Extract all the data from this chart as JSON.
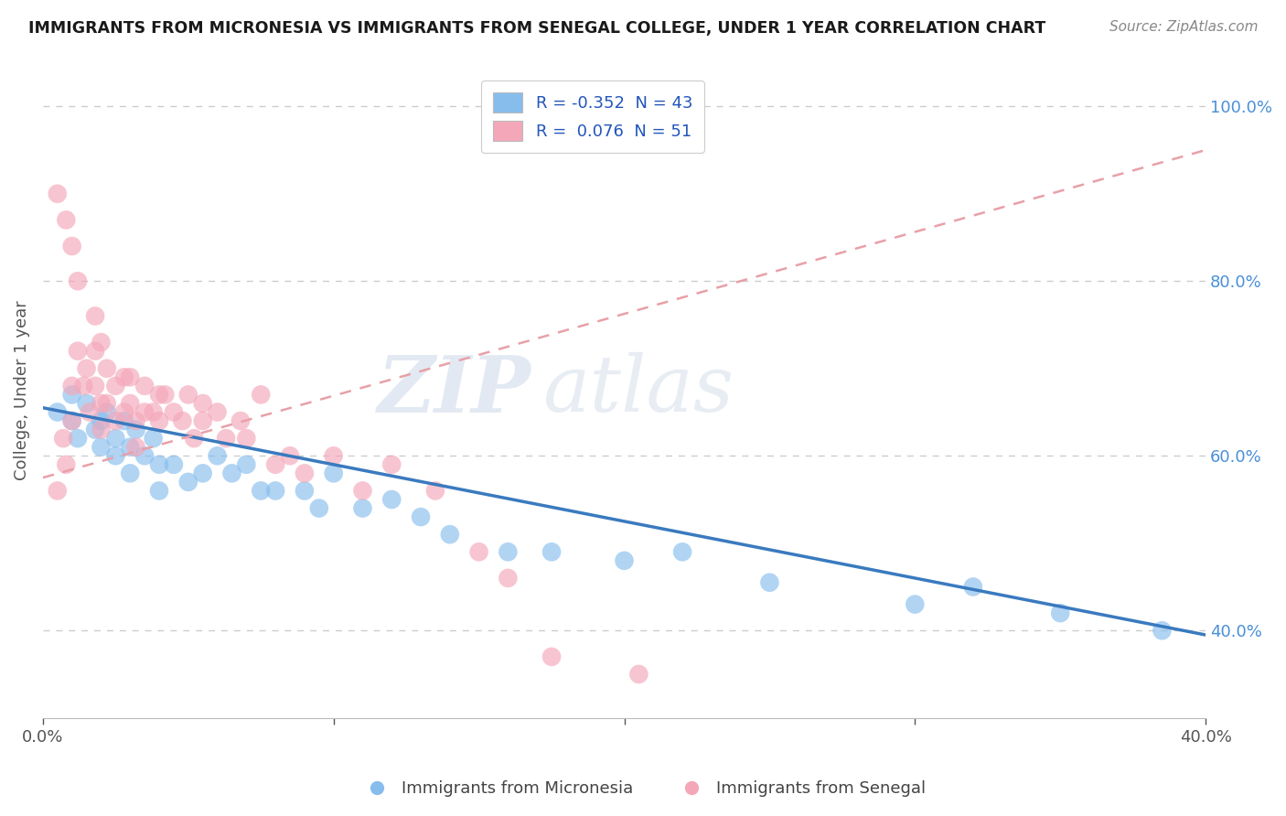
{
  "title": "IMMIGRANTS FROM MICRONESIA VS IMMIGRANTS FROM SENEGAL COLLEGE, UNDER 1 YEAR CORRELATION CHART",
  "source": "Source: ZipAtlas.com",
  "ylabel": "College, Under 1 year",
  "xlim": [
    0.0,
    0.4
  ],
  "ylim": [
    0.3,
    1.05
  ],
  "x_ticks": [
    0.0,
    0.1,
    0.2,
    0.3,
    0.4
  ],
  "x_tick_labels": [
    "0.0%",
    "",
    "",
    "",
    "40.0%"
  ],
  "y_ticks_right": [
    0.4,
    0.6,
    0.8,
    1.0
  ],
  "y_tick_labels_right": [
    "40.0%",
    "60.0%",
    "80.0%",
    "100.0%"
  ],
  "micronesia_color": "#87BDED",
  "senegal_color": "#F4A7B9",
  "micronesia_line_color": "#3a7abf",
  "senegal_line_color": "#e8a0a8",
  "R_micronesia": -0.352,
  "N_micronesia": 43,
  "R_senegal": 0.076,
  "N_senegal": 51,
  "watermark_zip": "ZIP",
  "watermark_atlas": "atlas",
  "background_color": "#ffffff",
  "grid_color": "#cccccc",
  "micronesia_x": [
    0.005,
    0.01,
    0.01,
    0.012,
    0.015,
    0.018,
    0.02,
    0.02,
    0.022,
    0.025,
    0.025,
    0.028,
    0.03,
    0.03,
    0.032,
    0.035,
    0.038,
    0.04,
    0.04,
    0.045,
    0.05,
    0.055,
    0.06,
    0.065,
    0.07,
    0.075,
    0.08,
    0.09,
    0.095,
    0.1,
    0.11,
    0.12,
    0.13,
    0.14,
    0.16,
    0.175,
    0.2,
    0.22,
    0.25,
    0.3,
    0.32,
    0.35,
    0.385
  ],
  "micronesia_y": [
    0.65,
    0.67,
    0.64,
    0.62,
    0.66,
    0.63,
    0.64,
    0.61,
    0.65,
    0.62,
    0.6,
    0.64,
    0.61,
    0.58,
    0.63,
    0.6,
    0.62,
    0.59,
    0.56,
    0.59,
    0.57,
    0.58,
    0.6,
    0.58,
    0.59,
    0.56,
    0.56,
    0.56,
    0.54,
    0.58,
    0.54,
    0.55,
    0.53,
    0.51,
    0.49,
    0.49,
    0.48,
    0.49,
    0.455,
    0.43,
    0.45,
    0.42,
    0.4
  ],
  "senegal_x": [
    0.005,
    0.007,
    0.008,
    0.01,
    0.01,
    0.012,
    0.014,
    0.015,
    0.016,
    0.018,
    0.018,
    0.02,
    0.02,
    0.022,
    0.022,
    0.025,
    0.025,
    0.028,
    0.028,
    0.03,
    0.03,
    0.032,
    0.032,
    0.035,
    0.035,
    0.038,
    0.04,
    0.04,
    0.042,
    0.045,
    0.048,
    0.05,
    0.052,
    0.055,
    0.055,
    0.06,
    0.063,
    0.068,
    0.07,
    0.075,
    0.08,
    0.085,
    0.09,
    0.1,
    0.11,
    0.12,
    0.135,
    0.15,
    0.16,
    0.175,
    0.205
  ],
  "senegal_y": [
    0.56,
    0.62,
    0.59,
    0.68,
    0.64,
    0.72,
    0.68,
    0.7,
    0.65,
    0.68,
    0.72,
    0.66,
    0.63,
    0.7,
    0.66,
    0.68,
    0.64,
    0.69,
    0.65,
    0.69,
    0.66,
    0.64,
    0.61,
    0.68,
    0.65,
    0.65,
    0.67,
    0.64,
    0.67,
    0.65,
    0.64,
    0.67,
    0.62,
    0.66,
    0.64,
    0.65,
    0.62,
    0.64,
    0.62,
    0.67,
    0.59,
    0.6,
    0.58,
    0.6,
    0.56,
    0.59,
    0.56,
    0.49,
    0.46,
    0.37,
    0.35
  ],
  "senegal_outliers_x": [
    0.005,
    0.008,
    0.01,
    0.012,
    0.018,
    0.02
  ],
  "senegal_outliers_y": [
    0.9,
    0.87,
    0.84,
    0.8,
    0.76,
    0.73
  ],
  "mic_line_x0": 0.0,
  "mic_line_x1": 0.4,
  "mic_line_y0": 0.655,
  "mic_line_y1": 0.395,
  "sen_line_x0": 0.0,
  "sen_line_x1": 0.4,
  "sen_line_y0": 0.575,
  "sen_line_y1": 0.95
}
